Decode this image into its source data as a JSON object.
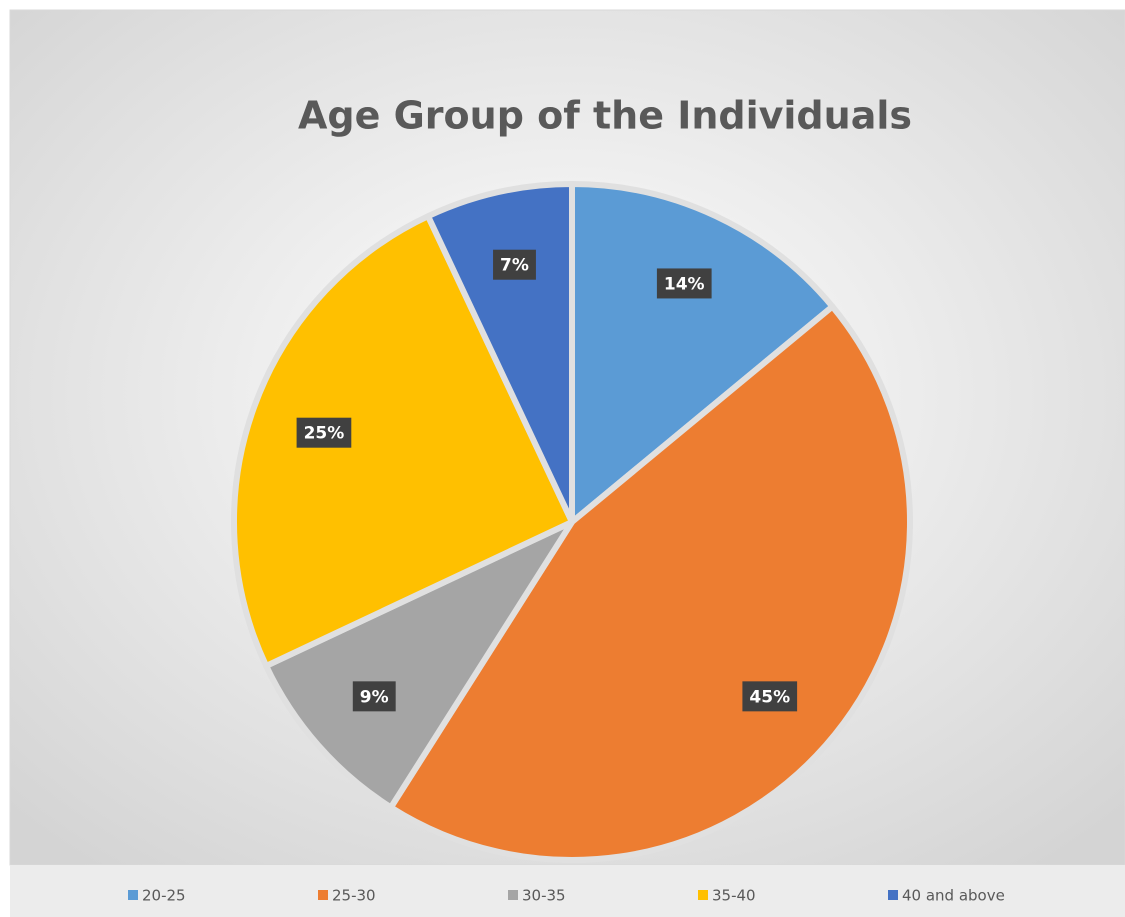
{
  "chart_data": {
    "type": "pie",
    "title": "Age Group of the Individuals",
    "categories": [
      "20-25",
      "25-30",
      "30-35",
      "35-40",
      "40 and above"
    ],
    "values": [
      14,
      45,
      9,
      25,
      7
    ],
    "value_labels": [
      "14%",
      "45%",
      "9%",
      "25%",
      "7%"
    ],
    "colors": [
      "#5b9bd5",
      "#ed7d31",
      "#a5a5a5",
      "#ffc000",
      "#4472c4"
    ],
    "legend": "bottom"
  }
}
